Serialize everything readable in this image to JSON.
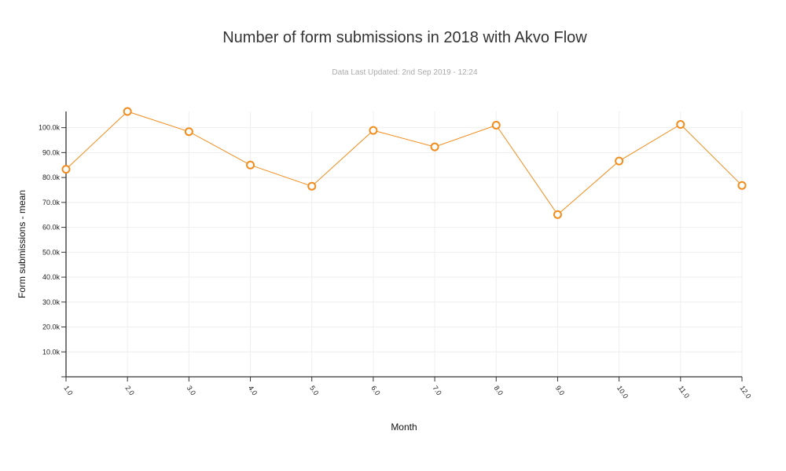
{
  "chart_data": {
    "type": "line",
    "title": "Number of form submissions in 2018 with Akvo Flow",
    "subtitle": "Data Last Updated: 2nd Sep 2019 - 12:24",
    "xlabel": "Month",
    "ylabel": "Form submissions - mean",
    "x": [
      1,
      2,
      3,
      4,
      5,
      6,
      7,
      8,
      9,
      10,
      11,
      12
    ],
    "x_tick_labels": [
      "1.0",
      "2.0",
      "3.0",
      "4.0",
      "5.0",
      "6.0",
      "7.0",
      "8.0",
      "9.0",
      "10.0",
      "11.0",
      "12.0"
    ],
    "y_ticks": [
      10000,
      20000,
      30000,
      40000,
      50000,
      60000,
      70000,
      80000,
      90000,
      100000
    ],
    "y_tick_labels": [
      "10.0k",
      "20.0k",
      "30.0k",
      "40.0k",
      "50.0k",
      "60.0k",
      "70.0k",
      "80.0k",
      "90.0k",
      "100.0k"
    ],
    "ylim": [
      0,
      106500
    ],
    "xlim": [
      1,
      12
    ],
    "series": [
      {
        "values": [
          83300,
          106500,
          98400,
          85000,
          76500,
          98900,
          92300,
          101000,
          65100,
          86600,
          101300,
          76800
        ],
        "color": "#f28c1c"
      }
    ],
    "grid": true,
    "legend": "none"
  }
}
